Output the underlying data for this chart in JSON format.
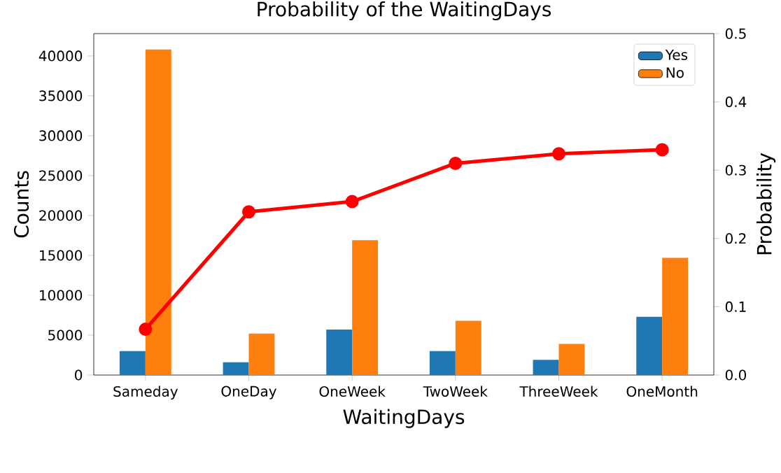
{
  "chart_data": {
    "type": "bar",
    "title": "Probability of the WaitingDays",
    "xlabel": "WaitingDays",
    "ylabel": "Counts",
    "y2label": "Probability",
    "categories": [
      "Sameday",
      "OneDay",
      "OneWeek",
      "TwoWeek",
      "ThreeWeek",
      "OneMonth"
    ],
    "series": [
      {
        "name": "Yes",
        "color": "#1f77b4",
        "values": [
          3000,
          1600,
          5700,
          3000,
          1900,
          7300
        ]
      },
      {
        "name": "No",
        "color": "#ff7f0e",
        "values": [
          40800,
          5200,
          16900,
          6800,
          3900,
          14700
        ]
      },
      {
        "type": "line",
        "axis": "y2",
        "color": "#ff0000",
        "marker": "circle",
        "line_style": "solid",
        "values": [
          0.067,
          0.239,
          0.254,
          0.31,
          0.324,
          0.33
        ]
      }
    ],
    "ylim": [
      0,
      42800
    ],
    "yticks": [
      0,
      5000,
      10000,
      15000,
      20000,
      25000,
      30000,
      35000,
      40000
    ],
    "y2lim": [
      0,
      0.5
    ],
    "y2ticks": [
      {
        "value": 0,
        "label": "0.0"
      },
      0.1,
      0.2,
      0.3,
      0.4,
      0.5
    ],
    "legend": "top right"
  }
}
